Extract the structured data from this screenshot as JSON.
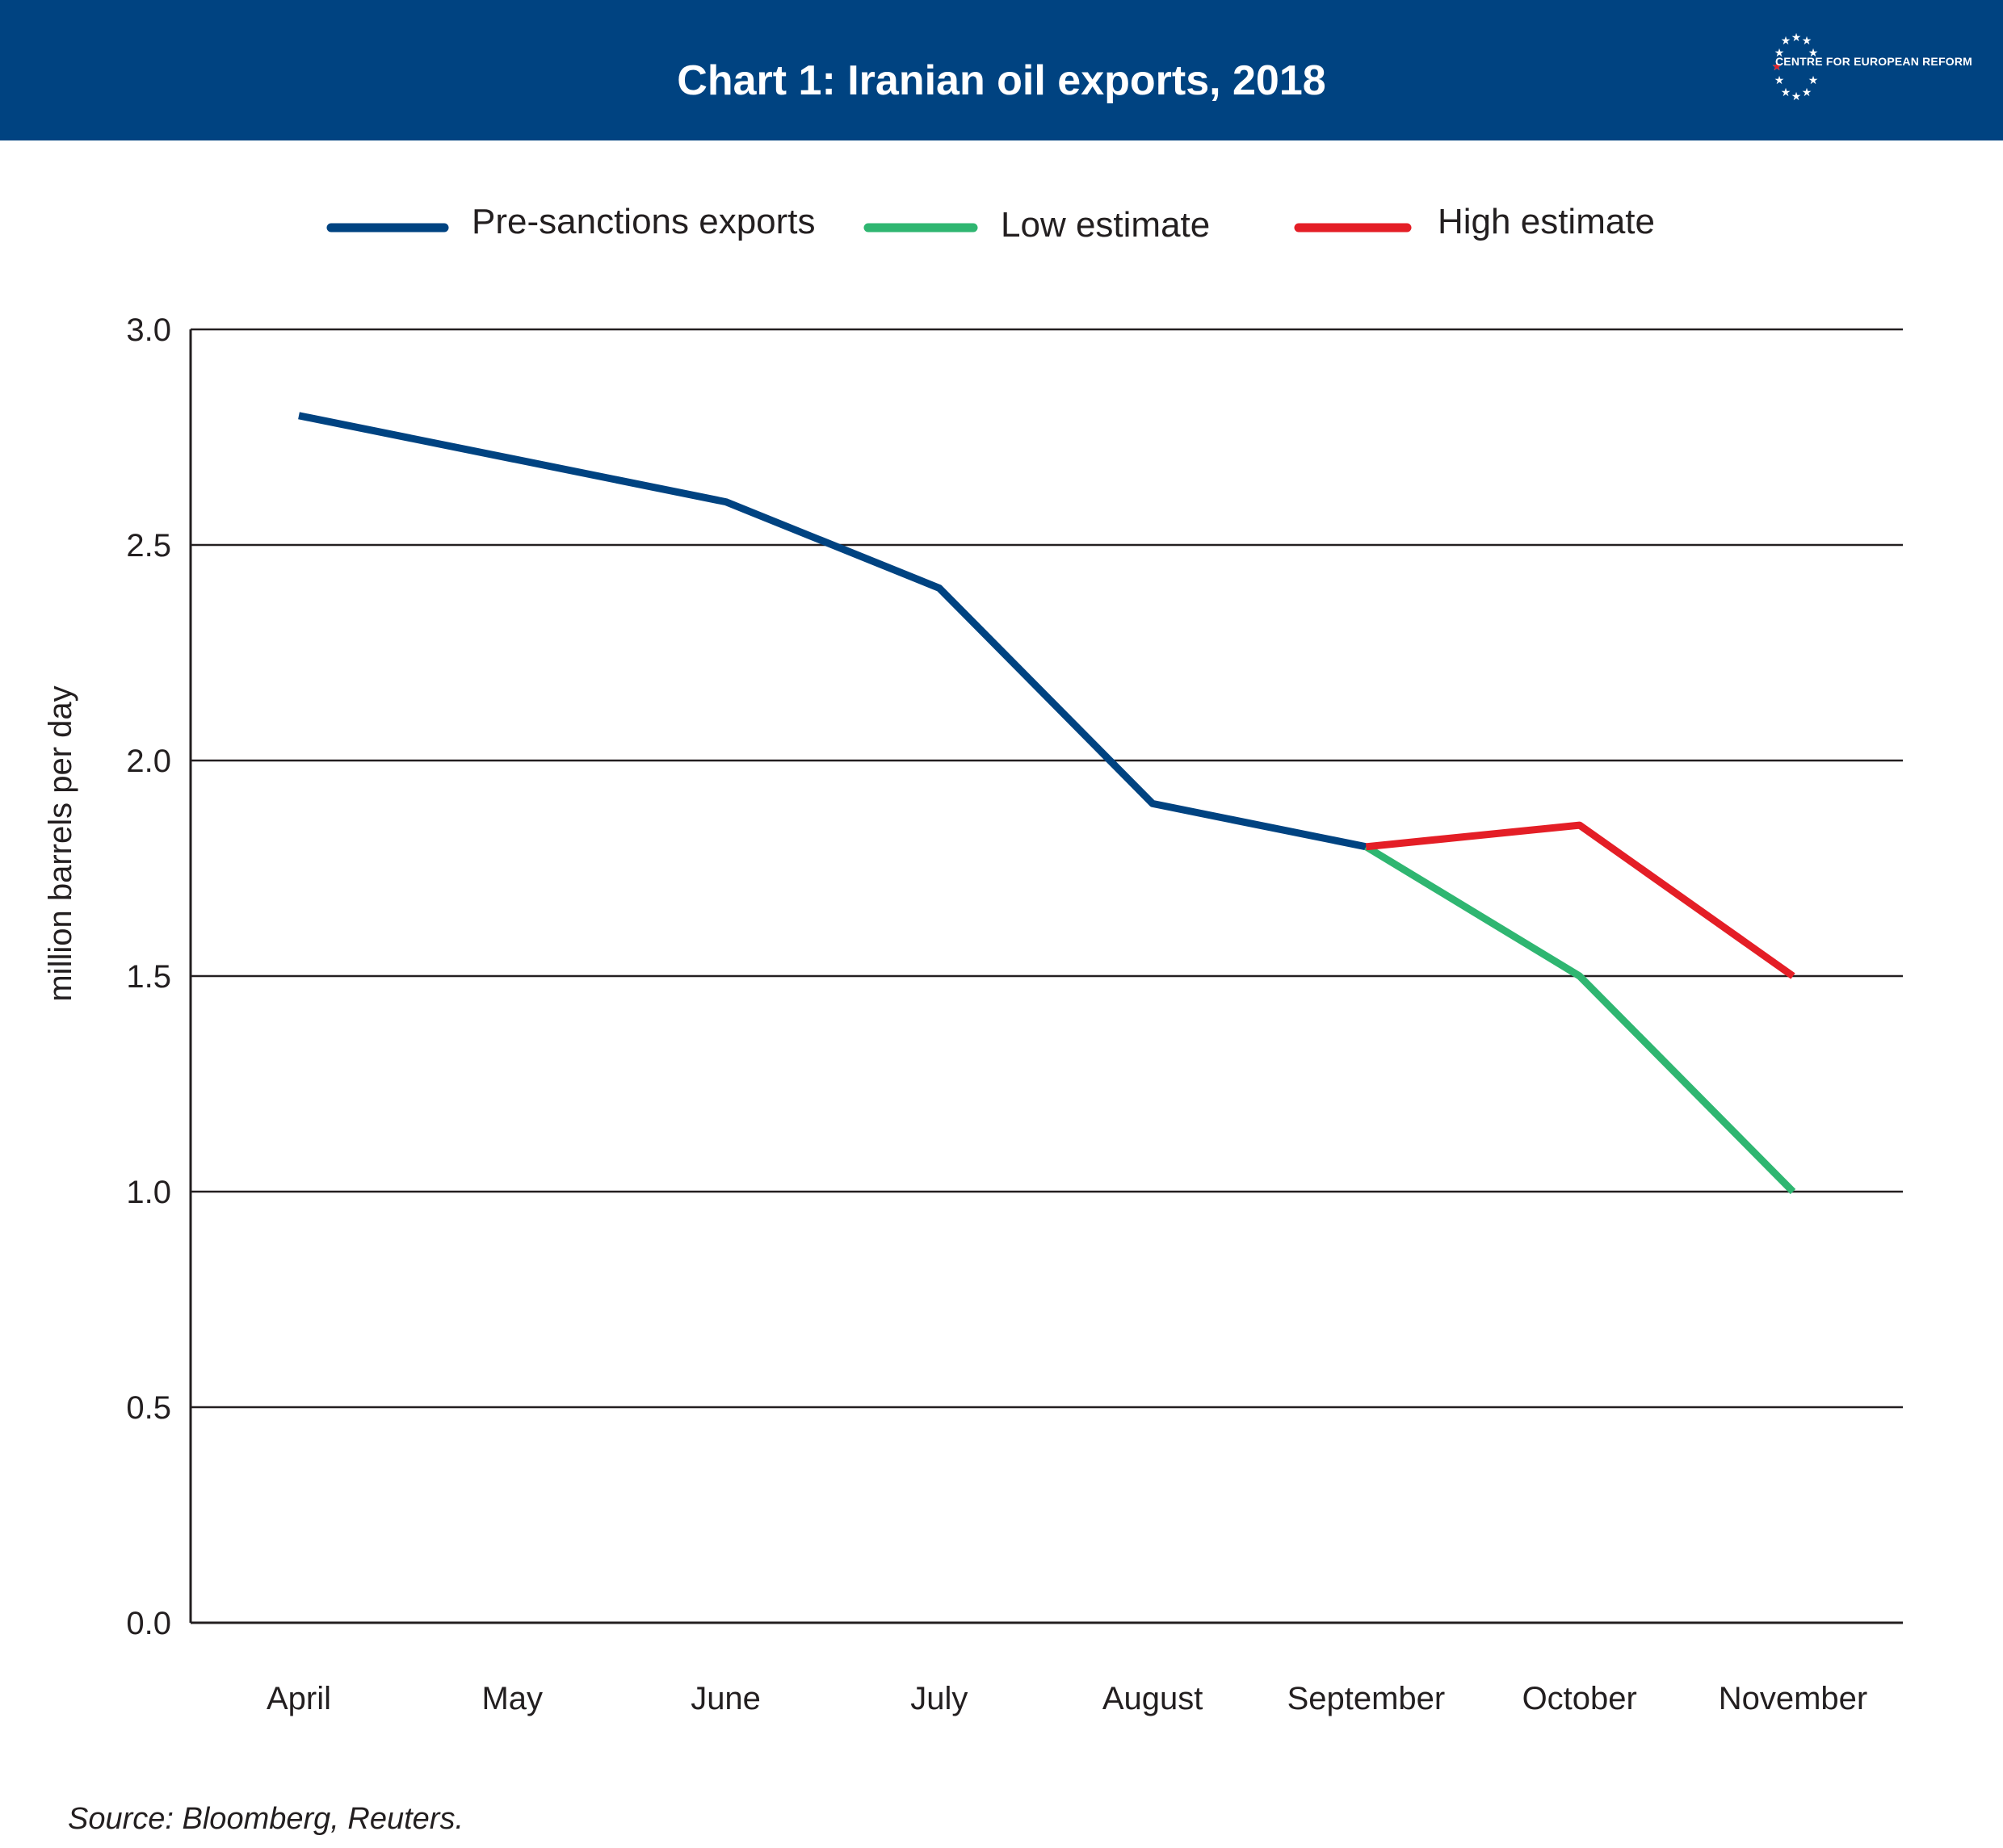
{
  "header": {
    "title": "Chart 1: Iranian oil exports, 2018",
    "logo_text": "CENTRE FOR EUROPEAN REFORM"
  },
  "legend": [
    {
      "label": "Pre-sanctions exports",
      "color": "#004381"
    },
    {
      "label": "Low estimate",
      "color": "#2fb671"
    },
    {
      "label": "High estimate",
      "color": "#e41e26"
    }
  ],
  "source": "Source: Bloomberg, Reuters.",
  "colors": {
    "header_bg": "#004381",
    "gridline": "#231f20"
  },
  "chart_data": {
    "type": "line",
    "title": "Chart 1: Iranian oil exports, 2018",
    "ylabel": "million barrels per day",
    "xlabel": "",
    "categories": [
      "April",
      "May",
      "June",
      "July",
      "August",
      "September",
      "October",
      "November"
    ],
    "ylim": [
      0,
      3
    ],
    "yticks": [
      "0.0",
      "0.5",
      "1.0",
      "1.5",
      "2.0",
      "2.5",
      "3.0"
    ],
    "grid": "horizontal",
    "legend_position": "top",
    "series": [
      {
        "name": "Pre-sanctions exports",
        "color": "#004381",
        "values": [
          2.8,
          2.7,
          2.6,
          2.4,
          1.9,
          1.8,
          null,
          null
        ]
      },
      {
        "name": "Low estimate",
        "color": "#2fb671",
        "values": [
          null,
          null,
          null,
          null,
          null,
          1.8,
          1.5,
          1.0
        ]
      },
      {
        "name": "High estimate",
        "color": "#e41e26",
        "values": [
          null,
          null,
          null,
          null,
          null,
          1.8,
          1.85,
          1.5
        ]
      }
    ]
  }
}
